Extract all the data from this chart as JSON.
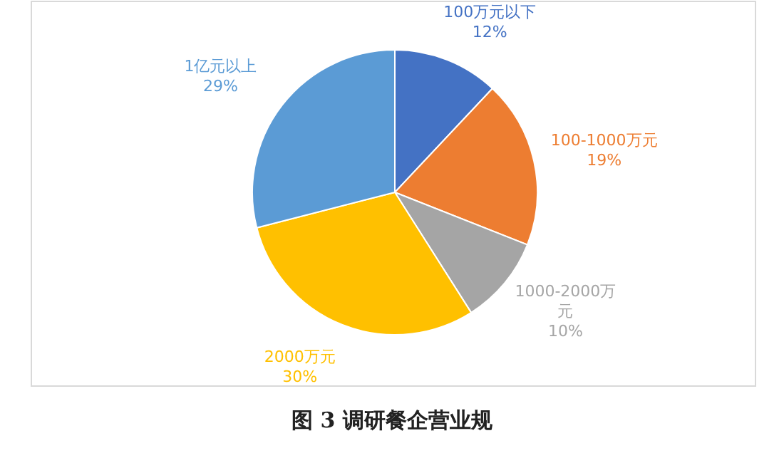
{
  "chart_data": {
    "type": "pie",
    "title": "图 3 调研餐企营业规",
    "categories": [
      "100万元以下",
      "100-1000万元",
      "1000-2000万元",
      "2000万元",
      "1亿元以上"
    ],
    "values": [
      12,
      19,
      10,
      30,
      29
    ],
    "colors": [
      "#4472c4",
      "#ed7d31",
      "#a5a5a5",
      "#ffc000",
      "#5b9bd5"
    ],
    "value_labels": [
      "12%",
      "19%",
      "10%",
      "30%",
      "29%"
    ]
  }
}
